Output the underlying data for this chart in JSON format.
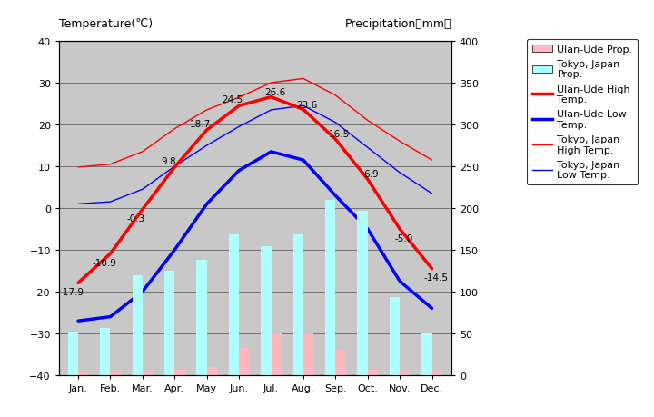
{
  "months": [
    "Jan.",
    "Feb.",
    "Mar.",
    "Apr.",
    "May",
    "Jun.",
    "Jul.",
    "Aug.",
    "Sep.",
    "Oct.",
    "Nov.",
    "Dec."
  ],
  "month_x": [
    0,
    1,
    2,
    3,
    4,
    5,
    6,
    7,
    8,
    9,
    10,
    11
  ],
  "ulan_ude_high": [
    -17.9,
    -10.9,
    -0.3,
    9.8,
    18.7,
    24.5,
    26.6,
    23.6,
    16.5,
    6.9,
    -5.0,
    -14.5
  ],
  "ulan_ude_low": [
    -27.0,
    -26.0,
    -20.0,
    -10.0,
    1.0,
    9.0,
    13.5,
    11.5,
    3.0,
    -5.0,
    -17.5,
    -24.0
  ],
  "tokyo_high": [
    9.8,
    10.5,
    13.5,
    19.0,
    23.5,
    26.5,
    30.0,
    31.0,
    27.0,
    21.0,
    16.0,
    11.5
  ],
  "tokyo_low": [
    1.0,
    1.5,
    4.5,
    10.0,
    15.0,
    19.5,
    23.5,
    24.5,
    20.5,
    14.5,
    8.5,
    3.5
  ],
  "ulan_ude_precip": [
    3,
    3,
    4,
    6,
    10,
    33,
    50,
    50,
    30,
    7,
    5,
    5
  ],
  "tokyo_precip": [
    52,
    56,
    120,
    125,
    138,
    168,
    154,
    168,
    210,
    197,
    93,
    51
  ],
  "ulan_ude_high_color": "#FF0000",
  "ulan_ude_low_color": "#0000FF",
  "tokyo_high_color": "#FF0000",
  "tokyo_low_color": "#0000FF",
  "ulan_ude_precip_color": "#FFB6C1",
  "tokyo_precip_color": "#AFFFFF",
  "temp_ylim": [
    -40,
    40
  ],
  "precip_ylim": [
    0,
    400
  ],
  "temp_yticks": [
    -40,
    -30,
    -20,
    -10,
    0,
    10,
    20,
    30,
    40
  ],
  "precip_yticks": [
    0,
    50,
    100,
    150,
    200,
    250,
    300,
    350,
    400
  ],
  "title_left": "Temperature(℃)",
  "title_right": "Precipitation（mm）",
  "bg_color": "#C8C8C8",
  "fig_bg": "#FFFFFF",
  "ulan_ude_high_lw": 2.5,
  "ulan_ude_low_lw": 2.5,
  "tokyo_high_lw": 1.0,
  "tokyo_low_lw": 1.0,
  "bar_width": 0.32,
  "annotation_fontsize": 7.5,
  "legend_labels": [
    "Ulan-Ude Prop.",
    "Tokyo, Japan\nProp.",
    "Ulan-Ude High\nTemp.",
    "Ulan-Ude Low\nTemp.",
    "Tokyo, Japan\nHigh Temp.",
    "Tokyo, Japan\nLow Temp."
  ]
}
